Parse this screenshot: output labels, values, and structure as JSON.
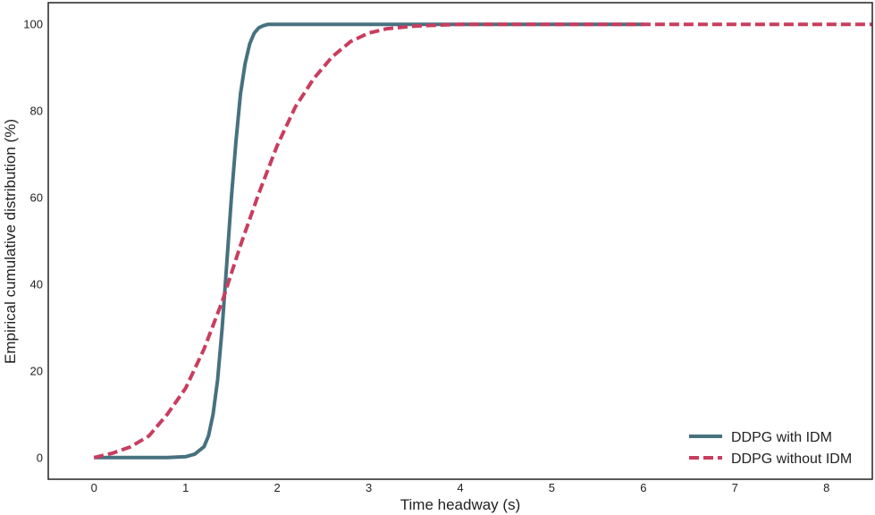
{
  "chart_data": {
    "type": "line",
    "title": "",
    "xlabel": "Time headway (s)",
    "ylabel": "Empirical cumulative distribution (%)",
    "xlim": [
      -0.5,
      8.5
    ],
    "ylim": [
      -5,
      105
    ],
    "xticks": [
      0,
      1,
      2,
      3,
      4,
      5,
      6,
      7,
      8
    ],
    "yticks": [
      0,
      20,
      40,
      60,
      80,
      100
    ],
    "grid": false,
    "legend_position": "bottom-right",
    "series": [
      {
        "name": "DDPG with IDM",
        "color": "#47717f",
        "style": "solid",
        "x": [
          0,
          0.8,
          1.0,
          1.1,
          1.2,
          1.25,
          1.3,
          1.35,
          1.4,
          1.45,
          1.5,
          1.55,
          1.6,
          1.65,
          1.7,
          1.75,
          1.8,
          1.85,
          1.9,
          2.0,
          2.5,
          3.0,
          4.0,
          5.0,
          6.0
        ],
        "y": [
          0,
          0,
          0.2,
          0.8,
          2.5,
          5,
          10,
          18,
          30,
          45,
          60,
          73,
          84,
          91,
          95.5,
          98,
          99.2,
          99.7,
          100,
          100,
          100,
          100,
          100,
          100,
          100
        ]
      },
      {
        "name": "DDPG without IDM",
        "color": "#c93d5e",
        "style": "dashed",
        "x": [
          0,
          0.2,
          0.4,
          0.6,
          0.8,
          1.0,
          1.2,
          1.4,
          1.6,
          1.8,
          2.0,
          2.2,
          2.4,
          2.6,
          2.8,
          3.0,
          3.2,
          3.5,
          4.0,
          5.0,
          6.0,
          7.0,
          8.0,
          8.5
        ],
        "y": [
          0,
          1,
          2.5,
          5,
          10,
          16,
          25,
          36,
          49,
          61,
          72,
          81,
          87.5,
          92.5,
          96,
          98,
          99,
          99.6,
          100,
          100,
          100,
          100,
          100,
          100
        ]
      }
    ]
  }
}
